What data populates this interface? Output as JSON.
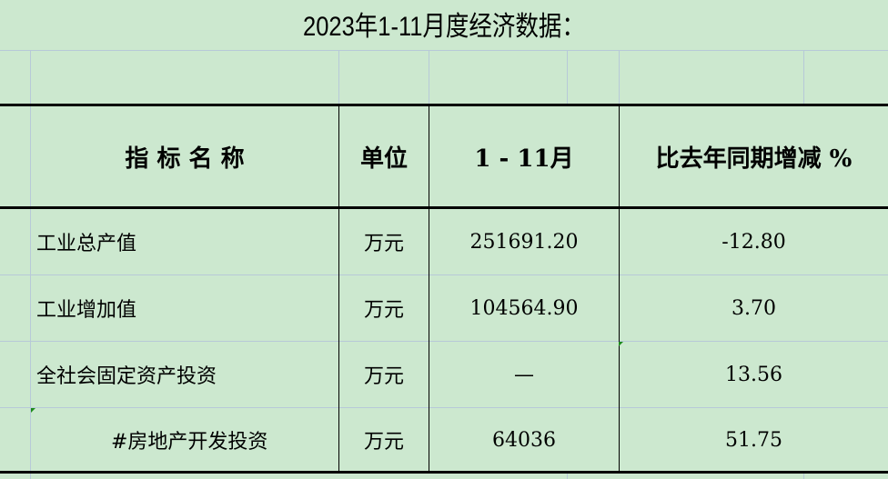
{
  "title": "2023年1-11月度经济数据：",
  "table": {
    "headers": [
      "指 标 名 称",
      "单位",
      "1 - 11月",
      "比去年同期增减 %"
    ],
    "rows": [
      {
        "name": "工业总产值",
        "unit": "万元",
        "value": "251691.20",
        "change": "-12.80"
      },
      {
        "name": "工业增加值",
        "unit": "万元",
        "value": "104564.90",
        "change": "3.70"
      },
      {
        "name": "全社会固定资产投资",
        "unit": "万元",
        "value": "—",
        "change": "13.56"
      },
      {
        "name": "#房地产开发投资",
        "unit": "万元",
        "value": "64036",
        "change": "51.75"
      }
    ]
  },
  "colors": {
    "background": "#cce8cf",
    "gridline": "#b7c9d8",
    "border": "#000000",
    "comment_marker": "#1a8a1a"
  }
}
